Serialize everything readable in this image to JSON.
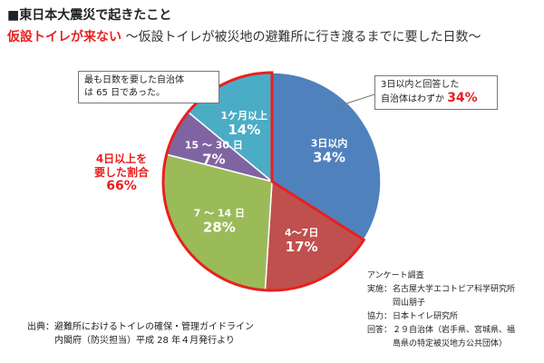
{
  "header": {
    "title": "■東日本大震災で起きたこと",
    "accent": "仮設トイレが来ない",
    "subtitle": "〜仮設トイレが被災地の避難所に行き渡るまでに要した日数〜"
  },
  "chart_data": {
    "type": "pie",
    "title": "",
    "slices": [
      {
        "label": "3日以内",
        "value": 34,
        "value_text": "34%",
        "color": "#4f81bd"
      },
      {
        "label": "4〜7日",
        "value": 17,
        "value_text": "17%",
        "color": "#c0504d"
      },
      {
        "label": "7 〜 14 日",
        "value": 28,
        "value_text": "28%",
        "color": "#9bbb59"
      },
      {
        "label": "15 〜 30 日",
        "value": 7,
        "value_text": "7%",
        "color": "#8064a2"
      },
      {
        "label": "1ケ月以上",
        "value": 14,
        "value_text": "14%",
        "color": "#4bacc6"
      }
    ],
    "highlight_color": "#e8201f",
    "annotations": {
      "left_callout": [
        "最も日数を要した自治体",
        "は 65 日であった。"
      ],
      "right_callout_text": [
        "3日以内と回答した",
        "自治体はわずか"
      ],
      "right_callout_pct": "34%",
      "over_four_days": [
        "4日以上を",
        "要した割合"
      ],
      "over_four_days_pct": "66%"
    }
  },
  "source": {
    "label": "出典：",
    "line1": "避難所におけるトイレの確保・管理ガイドライン",
    "line2": "内閣府（防災担当）平成 28 年４月発行より"
  },
  "survey": {
    "heading": "アンケート調査",
    "rows": [
      {
        "k": "実施：",
        "v": [
          "名古屋大学エコトピア科学研究所",
          "岡山朋子"
        ]
      },
      {
        "k": "協力：",
        "v": [
          "日本トイレ研究所"
        ]
      },
      {
        "k": "回答：",
        "v": [
          "２９自治体（岩手県、宮城県、福",
          "島県の特定被災地方公共団体）"
        ]
      }
    ]
  }
}
